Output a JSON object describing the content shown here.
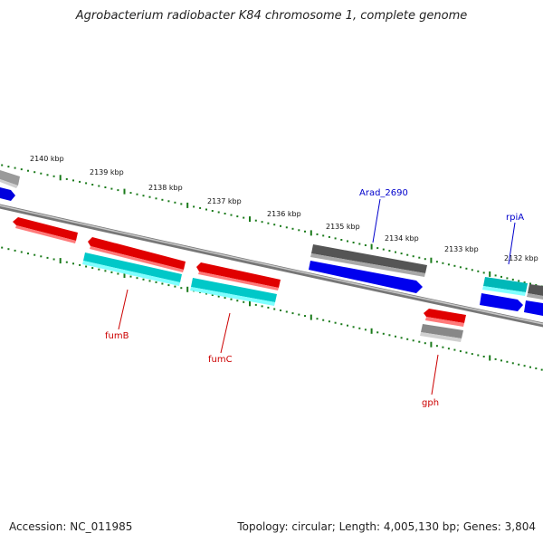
{
  "title": "Agrobacterium radiobacter K84 chromosome 1, complete genome",
  "accession": "Accession: NC_011985",
  "summary": "Topology: circular; Length: 4,005,130 bp; Genes: 3,804",
  "colors": {
    "forward": "#ff0000",
    "reverse_cyan": "#00e8e8",
    "blue": "#0000ee",
    "gray_dark": "#555555",
    "gray_light": "#bbbbbb",
    "backbone": "#888888",
    "tick": "#1a7a1a"
  },
  "kbp_labels": [
    "2140 kbp",
    "2139 kbp",
    "2138 kbp",
    "2137 kbp",
    "2136 kbp",
    "2135 kbp",
    "2134 kbp",
    "2133 kbp",
    "2132 kbp"
  ],
  "gene_labels": {
    "arad": "Arad_2690",
    "rpia": "rpiA",
    "fumb": "fumB",
    "fumc": "fumC",
    "gph": "gph"
  }
}
